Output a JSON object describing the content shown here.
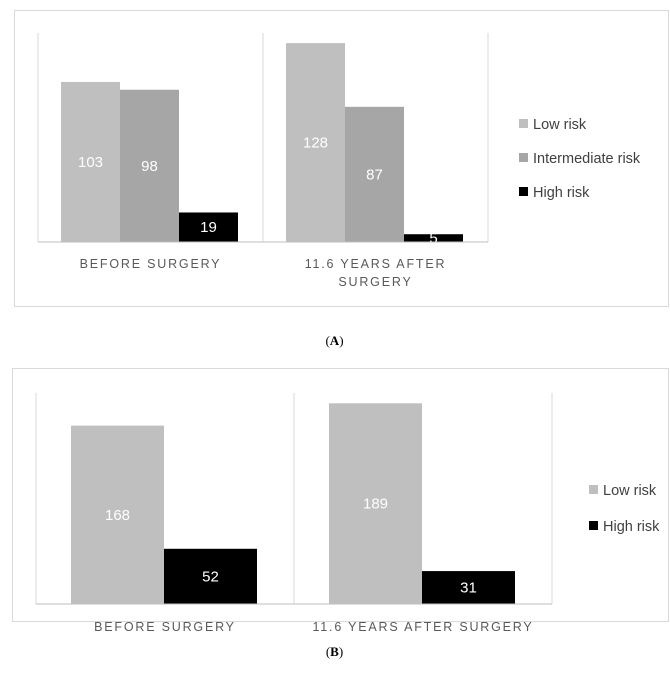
{
  "chart_data": [
    {
      "type": "bar",
      "panel_label": "A",
      "categories": [
        "BEFORE SURGERY",
        "11.6 YEARS AFTER SURGERY"
      ],
      "series": [
        {
          "name": "Low risk",
          "values": [
            103,
            128
          ],
          "color": "#bfbfbf",
          "label_color": "#ffffff"
        },
        {
          "name": "Intermediate risk",
          "values": [
            98,
            87
          ],
          "color": "#a6a6a6",
          "label_color": "#ffffff"
        },
        {
          "name": "High risk",
          "values": [
            19,
            5
          ],
          "color": "#000000",
          "label_color": "#ffffff"
        }
      ],
      "ylim": [
        0,
        130
      ],
      "legend": "right",
      "grid": false
    },
    {
      "type": "bar",
      "panel_label": "B",
      "categories": [
        "BEFORE SURGERY",
        "11.6 YEARS AFTER SURGERY"
      ],
      "series": [
        {
          "name": "Low risk",
          "values": [
            168,
            189
          ],
          "color": "#bfbfbf",
          "label_color": "#ffffff"
        },
        {
          "name": "High risk",
          "values": [
            52,
            31
          ],
          "color": "#000000",
          "label_color": "#ffffff"
        }
      ],
      "ylim": [
        0,
        194
      ],
      "legend": "right",
      "grid": false
    }
  ]
}
